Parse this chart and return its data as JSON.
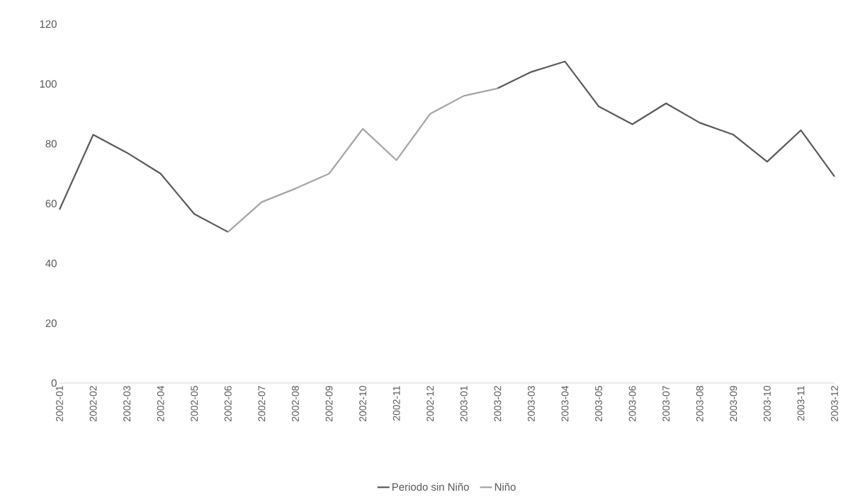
{
  "chart_data": {
    "type": "line",
    "categories": [
      "2002-01",
      "2002-02",
      "2002-03",
      "2002-04",
      "2002-05",
      "2002-06",
      "2002-07",
      "2002-08",
      "2002-09",
      "2002-10",
      "2002-11",
      "2002-12",
      "2003-01",
      "2003-02",
      "2003-03",
      "2003-04",
      "2003-05",
      "2003-06",
      "2003-07",
      "2003-08",
      "2003-09",
      "2003-10",
      "2003-11",
      "2003-12"
    ],
    "series": [
      {
        "name": "Periodo sin Niño",
        "color": "#595959",
        "values": [
          58,
          83,
          77,
          70,
          56.5,
          50.5,
          null,
          null,
          null,
          null,
          null,
          null,
          null,
          98.5,
          104,
          107.5,
          92.5,
          86.5,
          93.5,
          87,
          83,
          74,
          84.5,
          69
        ]
      },
      {
        "name": "Niño",
        "color": "#a5a5a5",
        "values": [
          null,
          null,
          null,
          null,
          null,
          50.5,
          60.5,
          65,
          70,
          85,
          74.5,
          90,
          96,
          98.5,
          null,
          null,
          null,
          null,
          null,
          null,
          null,
          null,
          null,
          null
        ]
      }
    ],
    "ylim": [
      0,
      120
    ],
    "yticks": [
      0,
      20,
      40,
      60,
      80,
      100,
      120
    ],
    "grid": false,
    "legend": "bottom",
    "marker": "none",
    "line_style": "solid"
  }
}
